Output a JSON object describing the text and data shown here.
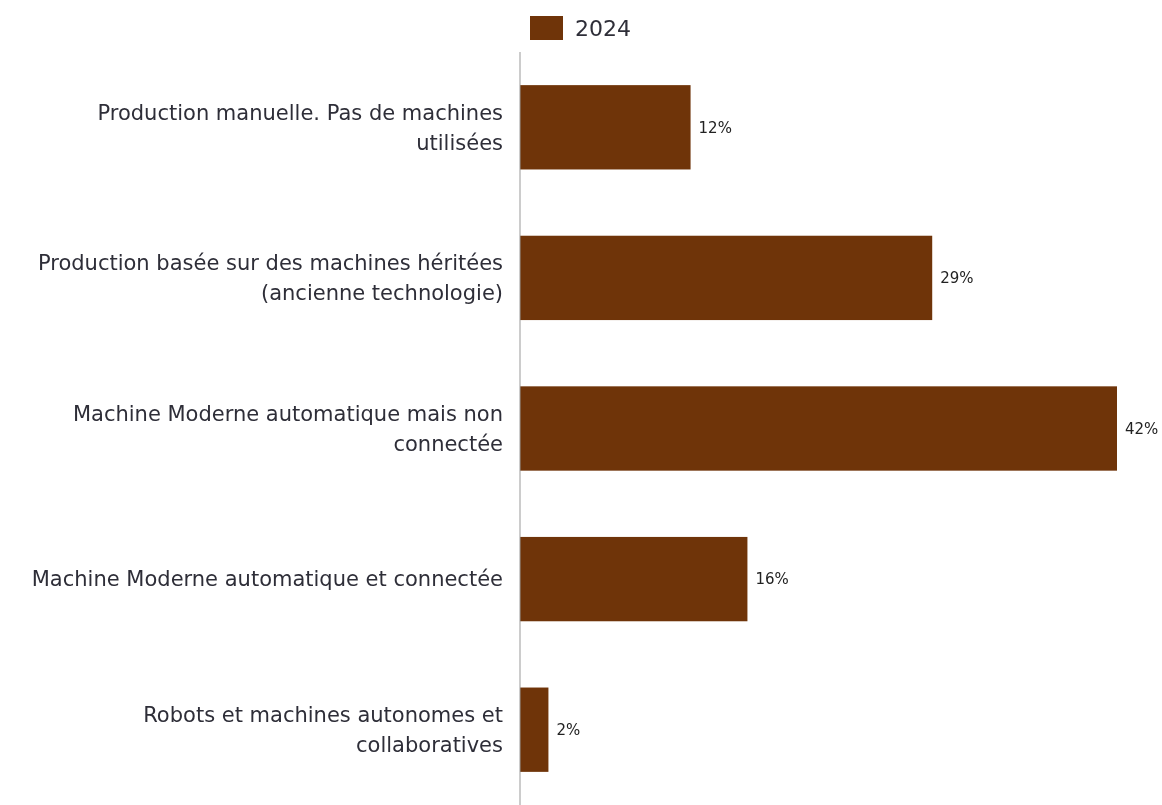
{
  "chart_data": {
    "type": "bar",
    "orientation": "horizontal",
    "categories": [
      "Production manuelle. Pas de machines utilisées",
      "Production basée sur des machines héritées (ancienne technologie)",
      "Machine Moderne automatique mais non connectée",
      "Machine Moderne automatique et connectée",
      "Robots et machines autonomes et collaboratives"
    ],
    "series": [
      {
        "name": "2024",
        "color": "#6f3409",
        "values": [
          12,
          29,
          42,
          16,
          2
        ],
        "value_labels": [
          "12%",
          "29%",
          "42%",
          "16%",
          "2%"
        ]
      }
    ],
    "legend": "top"
  }
}
